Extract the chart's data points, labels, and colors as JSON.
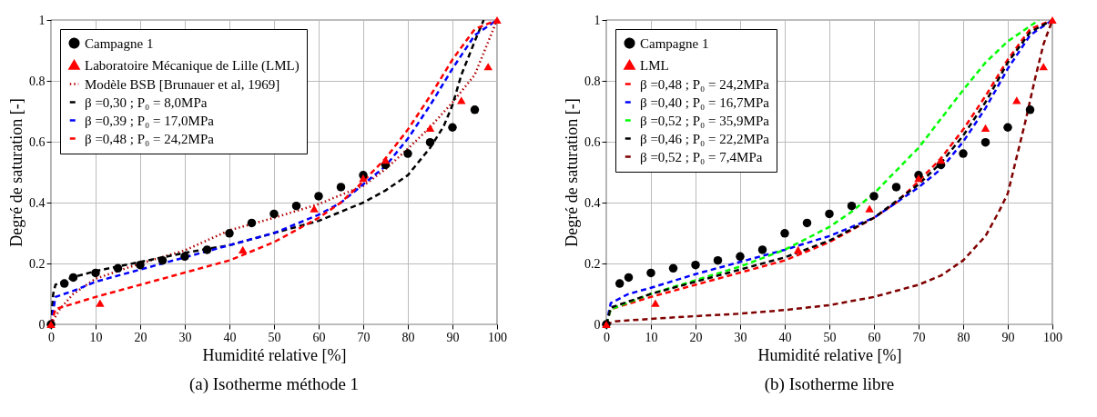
{
  "chart_data": [
    {
      "type": "scatter",
      "title": "(a) Isotherme méthode 1",
      "xlabel": "Humidité relative [%]",
      "ylabel": "Degré de saturation [-]",
      "xlim": [
        0,
        100
      ],
      "ylim": [
        0,
        1
      ],
      "xticks": [
        0,
        10,
        20,
        30,
        40,
        50,
        60,
        70,
        80,
        90,
        100
      ],
      "yticks": [
        0,
        0.2,
        0.4,
        0.6,
        0.8,
        1
      ],
      "grid": true,
      "legend": "top left",
      "series": [
        {
          "name": "Campagne 1",
          "marker": "circle",
          "color": "#000000",
          "x": [
            0,
            3,
            5,
            10,
            15,
            20,
            25,
            30,
            35,
            40,
            45,
            50,
            55,
            60,
            65,
            70,
            75,
            80,
            85,
            90,
            95
          ],
          "values": [
            0,
            0.134,
            0.154,
            0.169,
            0.184,
            0.195,
            0.21,
            0.223,
            0.245,
            0.299,
            0.333,
            0.363,
            0.389,
            0.421,
            0.451,
            0.49,
            0.524,
            0.561,
            0.598,
            0.647,
            0.705
          ]
        },
        {
          "name": "Laboratoire Mécanique de Lille (LML)",
          "marker": "triangle",
          "color": "#ff0000",
          "x": [
            0,
            11,
            43,
            59,
            70,
            75,
            85,
            92,
            98,
            100
          ],
          "values": [
            0,
            0.07,
            0.245,
            0.38,
            0.48,
            0.54,
            0.645,
            0.736,
            0.847,
            1
          ]
        },
        {
          "name": "Modèle BSB [Brunauer et al, 1969]",
          "type": "line",
          "line_style": "dotted",
          "color": "#b00000",
          "x": [
            0,
            2,
            5,
            10,
            20,
            30,
            40,
            50,
            60,
            70,
            75,
            80,
            85,
            90,
            95,
            100
          ],
          "values": [
            0,
            0.05,
            0.1,
            0.15,
            0.2,
            0.243,
            0.309,
            0.35,
            0.395,
            0.455,
            0.51,
            0.577,
            0.648,
            0.729,
            0.82,
            1
          ]
        },
        {
          "name": "β =0,30 ; P₀ = 8,0MPa",
          "type": "line",
          "line_style": "dashed",
          "color": "#000000",
          "x": [
            0,
            0.5,
            1,
            5,
            10,
            20,
            30,
            40,
            50,
            60,
            70,
            75,
            80,
            85,
            88,
            90,
            92,
            95,
            97
          ],
          "values": [
            0,
            0.1,
            0.13,
            0.155,
            0.175,
            0.205,
            0.235,
            0.26,
            0.3,
            0.34,
            0.4,
            0.44,
            0.49,
            0.58,
            0.65,
            0.72,
            0.82,
            0.93,
            1
          ]
        },
        {
          "name": "β =0,39 ; P₀ = 17,0MPa",
          "type": "line",
          "line_style": "dashed",
          "color": "#0000ff",
          "x": [
            0,
            1,
            5,
            10,
            20,
            30,
            40,
            50,
            60,
            65,
            70,
            75,
            80,
            85,
            90,
            95,
            100
          ],
          "values": [
            0,
            0.09,
            0.11,
            0.14,
            0.18,
            0.22,
            0.26,
            0.3,
            0.36,
            0.4,
            0.46,
            0.52,
            0.61,
            0.72,
            0.84,
            0.95,
            1
          ]
        },
        {
          "name": "β =0,48 ; P₀ = 24,2MPa",
          "type": "line",
          "line_style": "dashed",
          "color": "#ff0000",
          "x": [
            0,
            1,
            10,
            20,
            30,
            40,
            50,
            60,
            65,
            70,
            75,
            80,
            85,
            90,
            95,
            100
          ],
          "values": [
            0,
            0.05,
            0.09,
            0.13,
            0.17,
            0.21,
            0.27,
            0.35,
            0.4,
            0.47,
            0.545,
            0.64,
            0.75,
            0.87,
            0.97,
            1
          ]
        }
      ]
    },
    {
      "type": "scatter",
      "title": "(b) Isotherme libre",
      "xlabel": "Humidité relative [%]",
      "ylabel": "Degré de saturation [-]",
      "xlim": [
        0,
        100
      ],
      "ylim": [
        0,
        1
      ],
      "xticks": [
        0,
        10,
        20,
        30,
        40,
        50,
        60,
        70,
        80,
        90,
        100
      ],
      "yticks": [
        0,
        0.2,
        0.4,
        0.6,
        0.8,
        1
      ],
      "grid": true,
      "legend": "top left",
      "series": [
        {
          "name": "Campagne 1",
          "marker": "circle",
          "color": "#000000",
          "x": [
            0,
            3,
            5,
            10,
            15,
            20,
            25,
            30,
            35,
            40,
            45,
            50,
            55,
            60,
            65,
            70,
            75,
            80,
            85,
            90,
            95
          ],
          "values": [
            0,
            0.134,
            0.154,
            0.169,
            0.184,
            0.195,
            0.21,
            0.223,
            0.245,
            0.299,
            0.333,
            0.363,
            0.389,
            0.421,
            0.451,
            0.49,
            0.524,
            0.561,
            0.598,
            0.647,
            0.705
          ]
        },
        {
          "name": "LML",
          "marker": "triangle",
          "color": "#ff0000",
          "x": [
            0,
            11,
            43,
            59,
            70,
            75,
            85,
            92,
            98,
            100
          ],
          "values": [
            0,
            0.07,
            0.245,
            0.38,
            0.48,
            0.54,
            0.645,
            0.736,
            0.847,
            1
          ]
        },
        {
          "name": "β =0,48 ; P₀ = 24,2MPa",
          "type": "line",
          "line_style": "dashed",
          "color": "#ff0000",
          "x": [
            0,
            1,
            10,
            20,
            30,
            40,
            50,
            60,
            65,
            70,
            75,
            80,
            85,
            90,
            95,
            100
          ],
          "values": [
            0,
            0.05,
            0.09,
            0.13,
            0.17,
            0.21,
            0.27,
            0.35,
            0.4,
            0.47,
            0.545,
            0.64,
            0.75,
            0.87,
            0.97,
            1
          ]
        },
        {
          "name": "β =0,40 ; P₀ = 16,7MPa",
          "type": "line",
          "line_style": "dashed",
          "color": "#0000ff",
          "x": [
            0,
            1,
            5,
            10,
            20,
            30,
            40,
            50,
            60,
            70,
            75,
            80,
            85,
            90,
            95,
            100
          ],
          "values": [
            0,
            0.07,
            0.1,
            0.12,
            0.165,
            0.205,
            0.245,
            0.29,
            0.35,
            0.45,
            0.51,
            0.6,
            0.71,
            0.84,
            0.95,
            1
          ]
        },
        {
          "name": "β =0,52 ; P₀ = 35,9MPa",
          "type": "line",
          "line_style": "dashed",
          "color": "#00ff00",
          "x": [
            0,
            1,
            10,
            20,
            30,
            40,
            50,
            55,
            60,
            70,
            80,
            85,
            90,
            95,
            97
          ],
          "values": [
            0,
            0.05,
            0.1,
            0.145,
            0.19,
            0.245,
            0.32,
            0.37,
            0.43,
            0.58,
            0.77,
            0.86,
            0.93,
            0.98,
            1
          ]
        },
        {
          "name": "β =0,46 ; P₀ = 22,2MPa",
          "type": "line",
          "line_style": "dashed",
          "color": "#000000",
          "x": [
            0,
            1,
            10,
            20,
            30,
            40,
            50,
            60,
            70,
            75,
            80,
            85,
            90,
            95,
            100
          ],
          "values": [
            0,
            0.055,
            0.1,
            0.14,
            0.18,
            0.22,
            0.275,
            0.35,
            0.46,
            0.53,
            0.62,
            0.73,
            0.86,
            0.96,
            1
          ]
        },
        {
          "name": "β =0,52 ; P₀ = 7,4MPa",
          "type": "line",
          "line_style": "dashed",
          "color": "#800000",
          "x": [
            0,
            2,
            10,
            20,
            30,
            40,
            50,
            60,
            70,
            75,
            80,
            85,
            88,
            90,
            92,
            94,
            96,
            98,
            100
          ],
          "values": [
            0,
            0.01,
            0.018,
            0.027,
            0.035,
            0.047,
            0.063,
            0.09,
            0.13,
            0.16,
            0.21,
            0.29,
            0.37,
            0.43,
            0.55,
            0.67,
            0.8,
            0.92,
            1
          ]
        }
      ]
    }
  ]
}
